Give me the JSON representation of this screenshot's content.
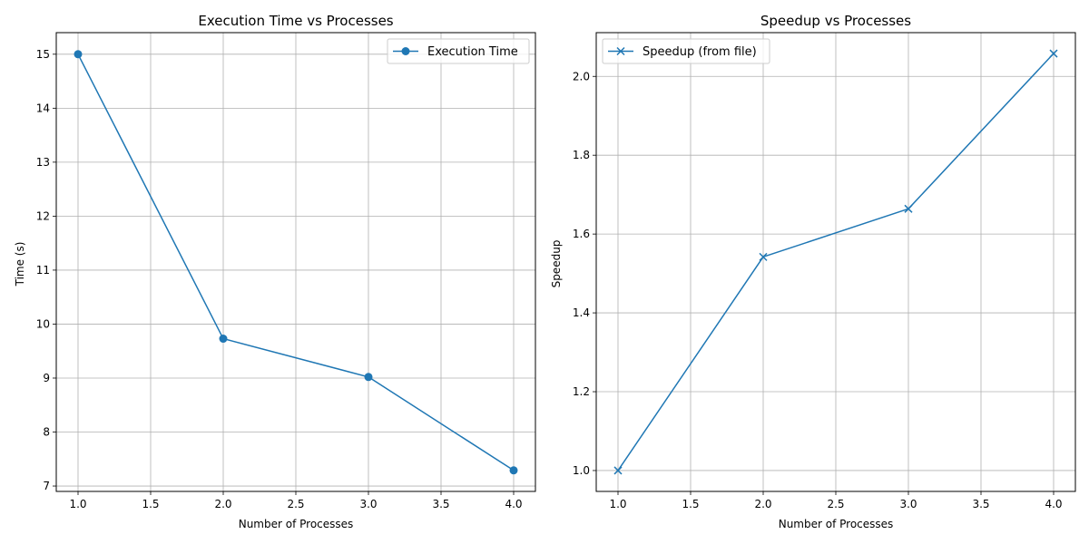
{
  "chart_data": [
    {
      "type": "line",
      "title": "Execution Time vs Processes",
      "xlabel": "Number of Processes",
      "ylabel": "Time (s)",
      "xlim": [
        0.85,
        4.15
      ],
      "ylim": [
        6.9,
        15.4
      ],
      "xticks": [
        1.0,
        1.5,
        2.0,
        2.5,
        3.0,
        3.5,
        4.0
      ],
      "xtick_labels": [
        "1.0",
        "1.5",
        "2.0",
        "2.5",
        "3.0",
        "3.5",
        "4.0"
      ],
      "yticks": [
        7,
        8,
        9,
        10,
        11,
        12,
        13,
        14,
        15
      ],
      "ytick_labels": [
        "7",
        "8",
        "9",
        "10",
        "11",
        "12",
        "13",
        "14",
        "15"
      ],
      "grid": true,
      "legend_position": "top-right",
      "series": [
        {
          "name": "Execution Time",
          "marker": "circle",
          "color": "#1f77b4",
          "x": [
            1,
            2,
            3,
            4
          ],
          "y": [
            15.0,
            9.73,
            9.02,
            7.29
          ]
        }
      ]
    },
    {
      "type": "line",
      "title": "Speedup vs Processes",
      "xlabel": "Number of Processes",
      "ylabel": "Speedup",
      "xlim": [
        0.85,
        4.15
      ],
      "ylim": [
        0.947,
        2.111
      ],
      "xticks": [
        1.0,
        1.5,
        2.0,
        2.5,
        3.0,
        3.5,
        4.0
      ],
      "xtick_labels": [
        "1.0",
        "1.5",
        "2.0",
        "2.5",
        "3.0",
        "3.5",
        "4.0"
      ],
      "yticks": [
        1.0,
        1.2,
        1.4,
        1.6,
        1.8,
        2.0
      ],
      "ytick_labels": [
        "1.0",
        "1.2",
        "1.4",
        "1.6",
        "1.8",
        "2.0"
      ],
      "grid": true,
      "legend_position": "top-left",
      "series": [
        {
          "name": "Speedup (from file)",
          "marker": "x",
          "color": "#1f77b4",
          "x": [
            1,
            2,
            3,
            4
          ],
          "y": [
            1.0,
            1.542,
            1.664,
            2.058
          ]
        }
      ]
    }
  ]
}
